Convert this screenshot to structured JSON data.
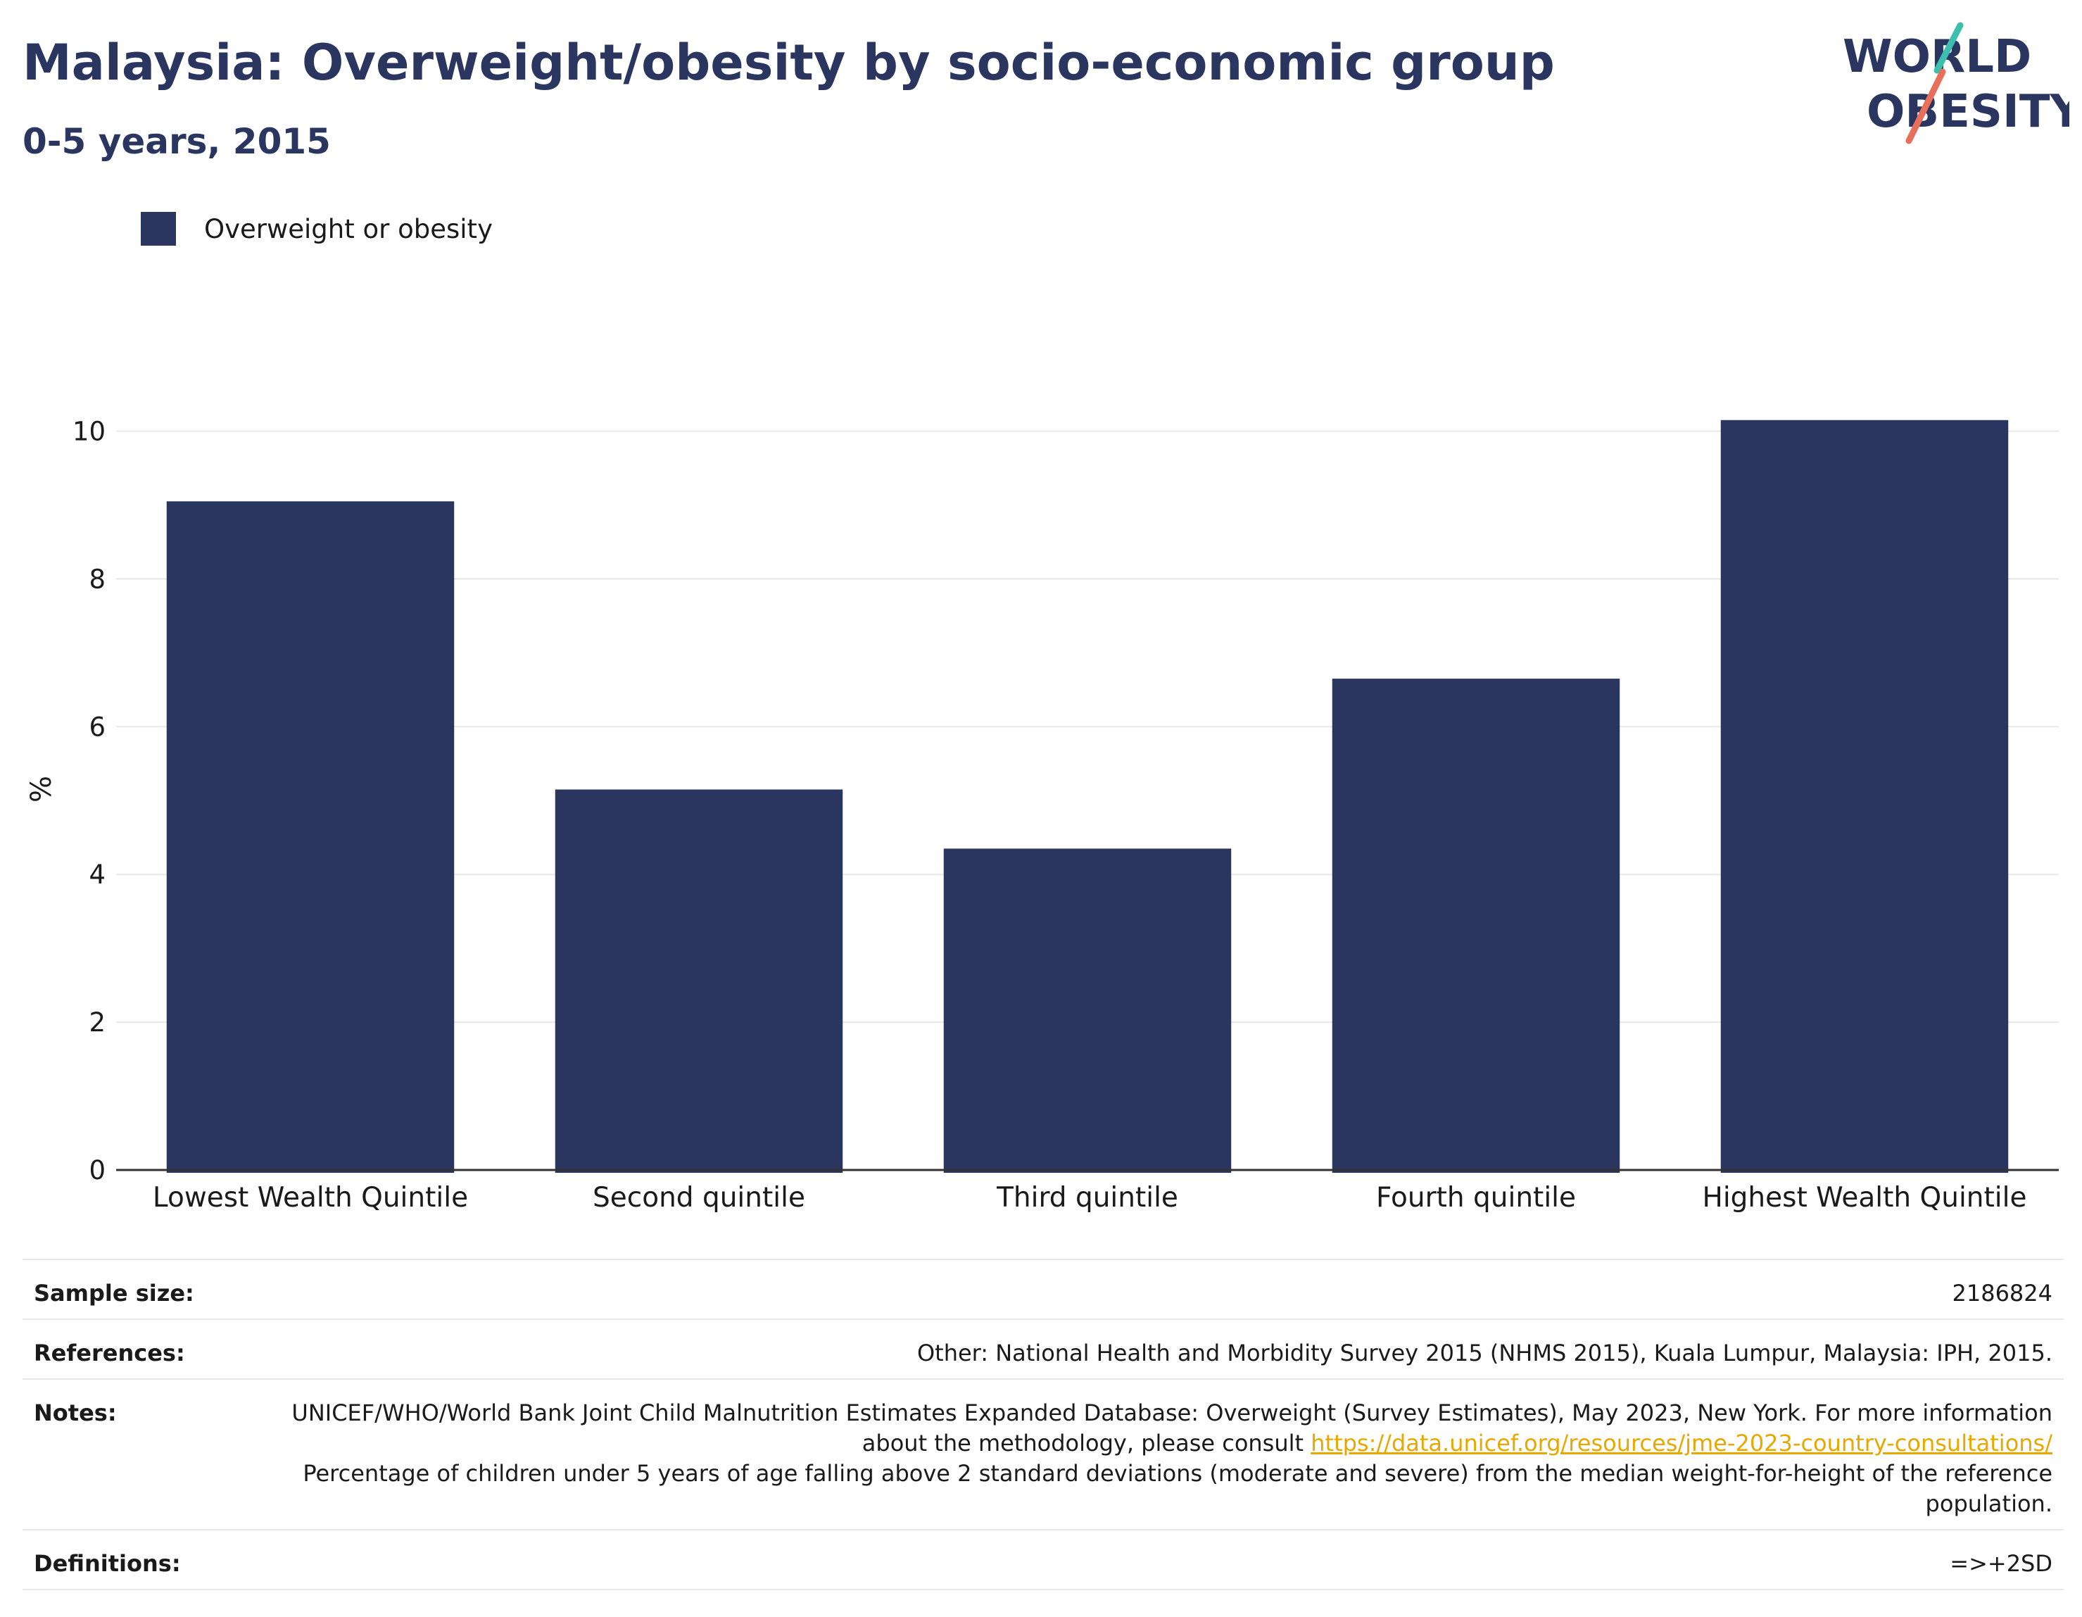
{
  "header": {
    "title": "Malaysia: Overweight/obesity by socio-economic group",
    "subtitle": "0-5 years, 2015"
  },
  "logo": {
    "line1": "WORLD",
    "line2": "OBESITY",
    "text_color": "#2a3660",
    "accent_teal": "#3cbfae",
    "accent_coral": "#e8705a"
  },
  "colors": {
    "bar": "#2a3660",
    "grid": "#e8e8e8",
    "axis": "#333333"
  },
  "chart_data": {
    "type": "bar",
    "categories": [
      "Lowest Wealth Quintile",
      "Second quintile",
      "Third quintile",
      "Fourth quintile",
      "Highest Wealth Quintile"
    ],
    "series": [
      {
        "name": "Overweight or obesity",
        "values": [
          9.05,
          5.15,
          4.35,
          6.65,
          10.15
        ]
      }
    ],
    "ylabel": "%",
    "ylim": [
      0,
      10.5
    ],
    "yticks": [
      0,
      2,
      4,
      6,
      8,
      10
    ],
    "grid": true,
    "legend": "top-left"
  },
  "info_table": {
    "sample_size": {
      "label": "Sample size:",
      "value": "2186824"
    },
    "references": {
      "label": "References:",
      "value": "Other: National Health and Morbidity Survey 2015 (NHMS 2015), Kuala Lumpur, Malaysia: IPH, 2015."
    },
    "notes": {
      "label": "Notes:",
      "text_before_link": "UNICEF/WHO/World Bank Joint Child Malnutrition Estimates Expanded Database: Overweight (Survey Estimates), May 2023, New York. For more information about the methodology, please consult ",
      "link": "https://data.unicef.org/resources/jme-2023-country-consultations/",
      "text_after_link": "Percentage of children under 5 years of age falling above 2 standard deviations (moderate and severe) from the median weight-for-height of the reference population."
    },
    "definitions": {
      "label": "Definitions:",
      "value": "=>+2SD"
    }
  }
}
